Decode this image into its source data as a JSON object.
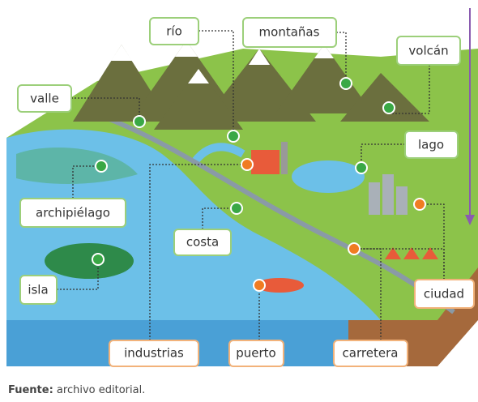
{
  "labels": [
    "río",
    "montañas",
    "volcán",
    "valle",
    "lago",
    "archipiélago",
    "costa",
    "isla",
    "ciudad",
    "industrias",
    "puerto",
    "carretera"
  ],
  "caption": {
    "source": "Fuente:",
    "text": " archivo editorial."
  }
}
